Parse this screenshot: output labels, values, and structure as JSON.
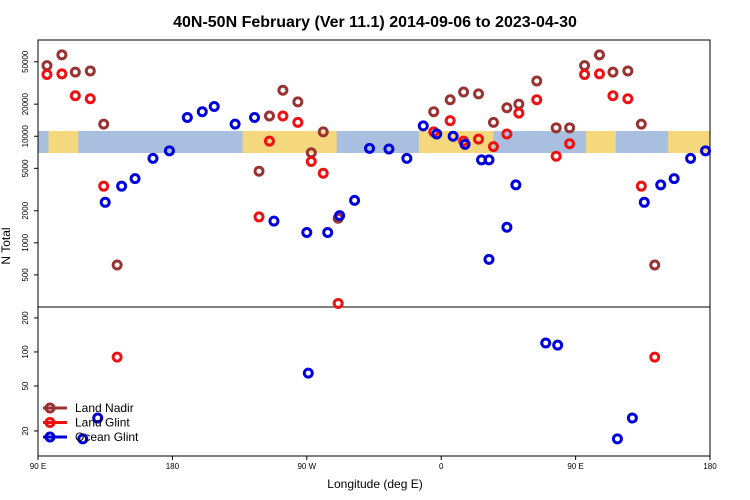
{
  "chart_data": {
    "type": "scatter",
    "title": "40N-50N February (Ver 11.1)   2014-09-06 to 2023-04-30",
    "xlabel": "Longitude (deg E)",
    "ylabel": "N Total",
    "x_ticks": [
      {
        "value": 90,
        "label": "90 E"
      },
      {
        "value": 180,
        "label": "180"
      },
      {
        "value": 270,
        "label": "90 W"
      },
      {
        "value": 360,
        "label": "0"
      },
      {
        "value": 450,
        "label": "90 E"
      },
      {
        "value": 540,
        "label": "180"
      }
    ],
    "xlim": [
      90,
      540
    ],
    "upper_panel": {
      "scale": "log",
      "ylim": [
        250,
        80000
      ],
      "y_ticks": [
        500,
        1000,
        2000,
        5000,
        10000,
        20000,
        50000
      ]
    },
    "lower_panel": {
      "scale": "log",
      "ylim": [
        12,
        250
      ],
      "y_ticks": [
        20,
        50,
        100,
        200
      ]
    },
    "map_band": {
      "lat_range": "40N-50N",
      "ocean_color": "#a8bfe0",
      "land_color": "#f5d77e"
    },
    "series": [
      {
        "name": "Land Nadir",
        "color": "#993333",
        "points": [
          [
            96,
            46000
          ],
          [
            106,
            58000
          ],
          [
            115,
            40000
          ],
          [
            125,
            41000
          ],
          [
            134,
            13000
          ],
          [
            143,
            620
          ],
          [
            238,
            4700
          ],
          [
            245,
            15500
          ],
          [
            254,
            27000
          ],
          [
            264,
            21000
          ],
          [
            273,
            7000
          ],
          [
            281,
            11000
          ],
          [
            291,
            1700
          ],
          [
            355,
            17000
          ],
          [
            366,
            22000
          ],
          [
            375,
            26000
          ],
          [
            385,
            25000
          ],
          [
            395,
            13500
          ],
          [
            404,
            18500
          ],
          [
            412,
            20000
          ],
          [
            424,
            33000
          ],
          [
            437,
            12000
          ],
          [
            446,
            12000
          ],
          [
            456,
            46000
          ],
          [
            466,
            58000
          ],
          [
            475,
            40000
          ],
          [
            485,
            41000
          ],
          [
            494,
            13000
          ],
          [
            503,
            620
          ]
        ]
      },
      {
        "name": "Land Glint",
        "color": "#ee1111",
        "points": [
          [
            96,
            38000
          ],
          [
            106,
            38500
          ],
          [
            115,
            24000
          ],
          [
            125,
            22500
          ],
          [
            134,
            3400
          ],
          [
            143,
            90
          ],
          [
            238,
            1750
          ],
          [
            245,
            9000
          ],
          [
            254,
            15500
          ],
          [
            264,
            13500
          ],
          [
            273,
            5800
          ],
          [
            281,
            4500
          ],
          [
            291,
            270
          ],
          [
            355,
            11000
          ],
          [
            366,
            14000
          ],
          [
            375,
            9000
          ],
          [
            385,
            9400
          ],
          [
            395,
            8000
          ],
          [
            404,
            10500
          ],
          [
            412,
            16500
          ],
          [
            424,
            22000
          ],
          [
            437,
            6500
          ],
          [
            446,
            8500
          ],
          [
            456,
            38000
          ],
          [
            466,
            38500
          ],
          [
            475,
            24000
          ],
          [
            485,
            22500
          ],
          [
            494,
            3400
          ],
          [
            503,
            90
          ]
        ]
      },
      {
        "name": "Ocean Glint",
        "color": "#0000dd",
        "points": [
          [
            135,
            2400
          ],
          [
            146,
            3400
          ],
          [
            155,
            4000
          ],
          [
            167,
            6200
          ],
          [
            178,
            7300
          ],
          [
            190,
            15000
          ],
          [
            200,
            17000
          ],
          [
            208,
            19000
          ],
          [
            222,
            13000
          ],
          [
            235,
            15000
          ],
          [
            248,
            1600
          ],
          [
            270,
            1250
          ],
          [
            271,
            65
          ],
          [
            284,
            1250
          ],
          [
            292,
            1800
          ],
          [
            302,
            2500
          ],
          [
            312,
            7700
          ],
          [
            325,
            7600
          ],
          [
            337,
            6200
          ],
          [
            348,
            12500
          ],
          [
            357,
            10500
          ],
          [
            368,
            10000
          ],
          [
            376,
            8400
          ],
          [
            387,
            6000
          ],
          [
            392,
            700
          ],
          [
            404,
            1400
          ],
          [
            410,
            3500
          ],
          [
            430,
            120
          ],
          [
            438,
            115
          ],
          [
            392,
            6000
          ],
          [
            507,
            3500
          ],
          [
            516,
            4000
          ],
          [
            527,
            6200
          ],
          [
            537,
            7300
          ],
          [
            120,
            17
          ],
          [
            130,
            26
          ],
          [
            478,
            17
          ],
          [
            488,
            26
          ],
          [
            496,
            2400
          ]
        ]
      }
    ],
    "legend": {
      "position": "bottom-left",
      "entries": [
        "Land Nadir",
        "Land Glint",
        "Ocean Glint"
      ]
    }
  }
}
